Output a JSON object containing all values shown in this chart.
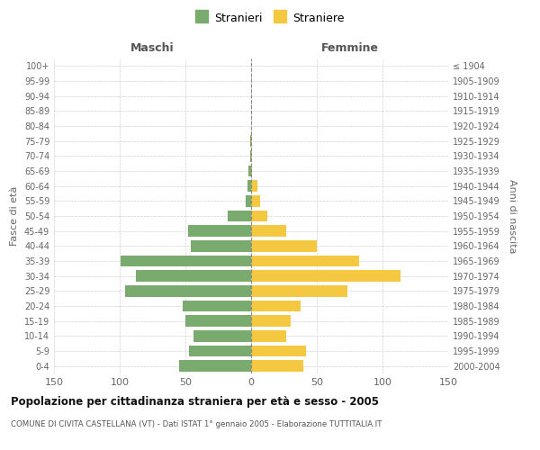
{
  "age_groups": [
    "0-4",
    "5-9",
    "10-14",
    "15-19",
    "20-24",
    "25-29",
    "30-34",
    "35-39",
    "40-44",
    "45-49",
    "50-54",
    "55-59",
    "60-64",
    "65-69",
    "70-74",
    "75-79",
    "80-84",
    "85-89",
    "90-94",
    "95-99",
    "100+"
  ],
  "birth_years": [
    "2000-2004",
    "1995-1999",
    "1990-1994",
    "1985-1989",
    "1980-1984",
    "1975-1979",
    "1970-1974",
    "1965-1969",
    "1960-1964",
    "1955-1959",
    "1950-1954",
    "1945-1949",
    "1940-1944",
    "1935-1939",
    "1930-1934",
    "1925-1929",
    "1920-1924",
    "1915-1919",
    "1910-1914",
    "1905-1909",
    "≤ 1904"
  ],
  "maschi": [
    55,
    47,
    44,
    50,
    52,
    96,
    88,
    99,
    46,
    48,
    18,
    4,
    3,
    2,
    1,
    1,
    0,
    0,
    0,
    0,
    0
  ],
  "femmine": [
    40,
    42,
    27,
    30,
    38,
    73,
    114,
    82,
    50,
    27,
    12,
    7,
    5,
    1,
    1,
    1,
    0,
    0,
    0,
    0,
    0
  ],
  "color_maschi": "#7aab6e",
  "color_femmine": "#f5c842",
  "title": "Popolazione per cittadinanza straniera per età e sesso - 2005",
  "subtitle": "COMUNE DI CIVITA CASTELLANA (VT) - Dati ISTAT 1° gennaio 2005 - Elaborazione TUTTITALIA.IT",
  "xlabel_left": "Maschi",
  "xlabel_right": "Femmine",
  "ylabel_left": "Fasce di età",
  "ylabel_right": "Anni di nascita",
  "legend_maschi": "Stranieri",
  "legend_femmine": "Straniere",
  "xlim": 150,
  "background_color": "#ffffff",
  "grid_color": "#cccccc"
}
